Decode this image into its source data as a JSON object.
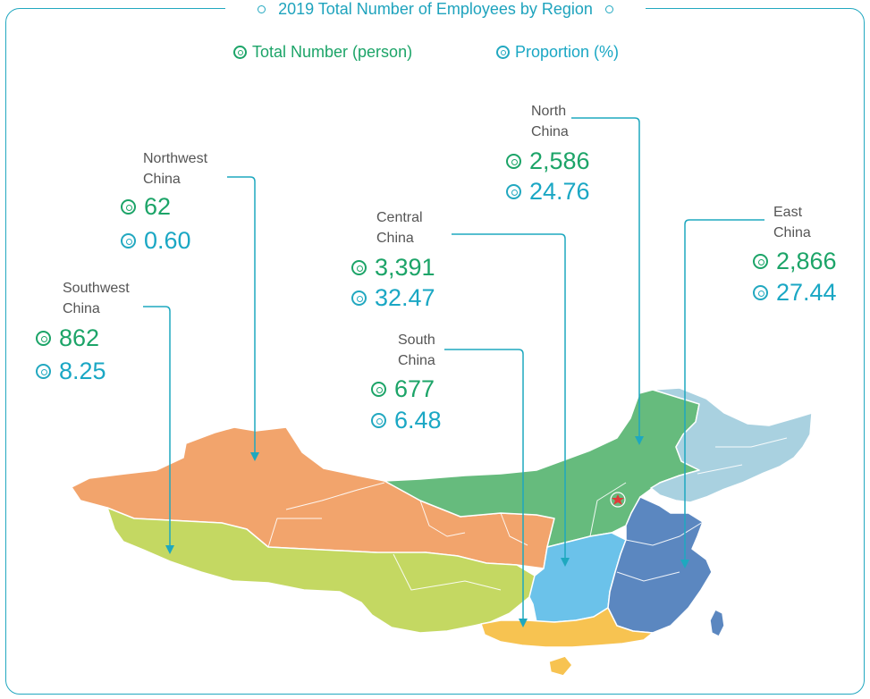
{
  "title": "2019 Total Number of Employees by Region",
  "legend": {
    "total_label": "Total Number (person)",
    "proportion_label": "Proportion (%)"
  },
  "colors": {
    "frame": "#22a8c0",
    "total": "#1ca468",
    "proportion": "#1aa7c4",
    "northwest": "#f2a46c",
    "southwest": "#c4d862",
    "north": "#66bb7d",
    "central": "#6bc2ea",
    "south": "#f7c351",
    "east": "#5b87c0",
    "northeast": "#a9d1e0",
    "capital_star": "#e03a3a"
  },
  "regions": {
    "northwest": {
      "name_line1": "Northwest",
      "name_line2": "China",
      "total": "62",
      "proportion": "0.60"
    },
    "southwest": {
      "name_line1": "Southwest",
      "name_line2": "China",
      "total": "862",
      "proportion": "8.25"
    },
    "central": {
      "name_line1": "Central",
      "name_line2": "China",
      "total": "3,391",
      "proportion": "32.47"
    },
    "south": {
      "name_line1": "South",
      "name_line2": "China",
      "total": "677",
      "proportion": "6.48"
    },
    "north": {
      "name_line1": "North",
      "name_line2": "China",
      "total": "2,586",
      "proportion": "24.76"
    },
    "east": {
      "name_line1": "East",
      "name_line2": "China",
      "total": "2,866",
      "proportion": "27.44"
    }
  }
}
